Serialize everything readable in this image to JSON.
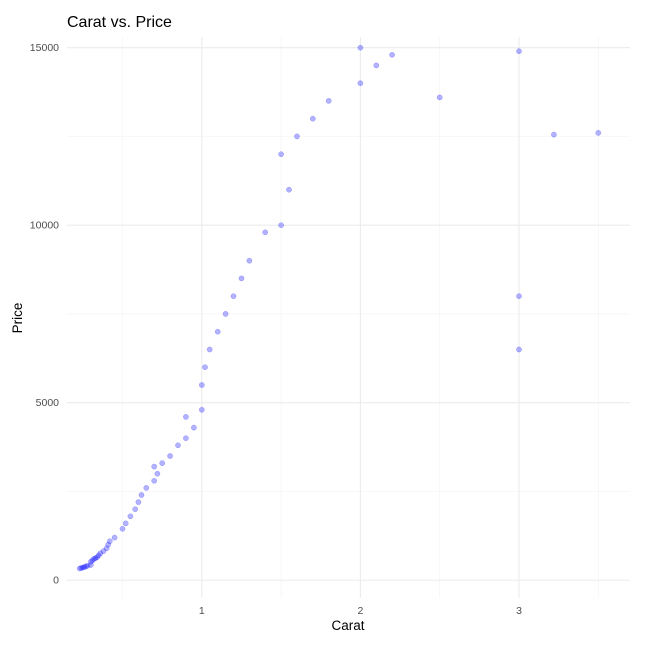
{
  "chart_data": {
    "type": "scatter",
    "title": "Carat vs. Price",
    "xlabel": "Carat",
    "ylabel": "Price",
    "xlim": [
      0.15,
      3.7
    ],
    "ylim": [
      -500,
      15300
    ],
    "x_ticks": [
      1,
      2,
      3
    ],
    "y_ticks": [
      0,
      5000,
      10000,
      15000
    ],
    "grid": true,
    "legend": "none",
    "point_color": "#0000FF",
    "point_opacity": 0.3,
    "series": [
      {
        "points": [
          [
            0.23,
            330
          ],
          [
            0.24,
            345
          ],
          [
            0.25,
            360
          ],
          [
            0.26,
            372
          ],
          [
            0.27,
            390
          ],
          [
            0.28,
            410
          ],
          [
            0.3,
            430
          ],
          [
            0.3,
            520
          ],
          [
            0.31,
            560
          ],
          [
            0.32,
            600
          ],
          [
            0.33,
            620
          ],
          [
            0.34,
            650
          ],
          [
            0.35,
            700
          ],
          [
            0.36,
            760
          ],
          [
            0.38,
            820
          ],
          [
            0.4,
            900
          ],
          [
            0.41,
            1000
          ],
          [
            0.42,
            1100
          ],
          [
            0.45,
            1200
          ],
          [
            0.5,
            1450
          ],
          [
            0.52,
            1600
          ],
          [
            0.55,
            1800
          ],
          [
            0.58,
            2000
          ],
          [
            0.6,
            2200
          ],
          [
            0.62,
            2400
          ],
          [
            0.65,
            2600
          ],
          [
            0.7,
            2800
          ],
          [
            0.7,
            3200
          ],
          [
            0.72,
            3000
          ],
          [
            0.75,
            3300
          ],
          [
            0.8,
            3500
          ],
          [
            0.85,
            3800
          ],
          [
            0.9,
            4000
          ],
          [
            0.9,
            4600
          ],
          [
            0.95,
            4300
          ],
          [
            1.0,
            4800
          ],
          [
            1.0,
            5500
          ],
          [
            1.02,
            6000
          ],
          [
            1.05,
            6500
          ],
          [
            1.1,
            7000
          ],
          [
            1.15,
            7500
          ],
          [
            1.2,
            8000
          ],
          [
            1.25,
            8500
          ],
          [
            1.3,
            9000
          ],
          [
            1.4,
            9800
          ],
          [
            1.5,
            10000
          ],
          [
            1.5,
            12000
          ],
          [
            1.55,
            11000
          ],
          [
            1.6,
            12500
          ],
          [
            1.7,
            13000
          ],
          [
            1.8,
            13500
          ],
          [
            2.0,
            14000
          ],
          [
            2.0,
            15000
          ],
          [
            2.1,
            14500
          ],
          [
            2.2,
            14800
          ],
          [
            2.5,
            13600
          ],
          [
            3.0,
            14900
          ],
          [
            3.0,
            8000
          ],
          [
            3.0,
            6500
          ],
          [
            3.22,
            12550
          ],
          [
            3.5,
            12600
          ]
        ]
      }
    ]
  }
}
